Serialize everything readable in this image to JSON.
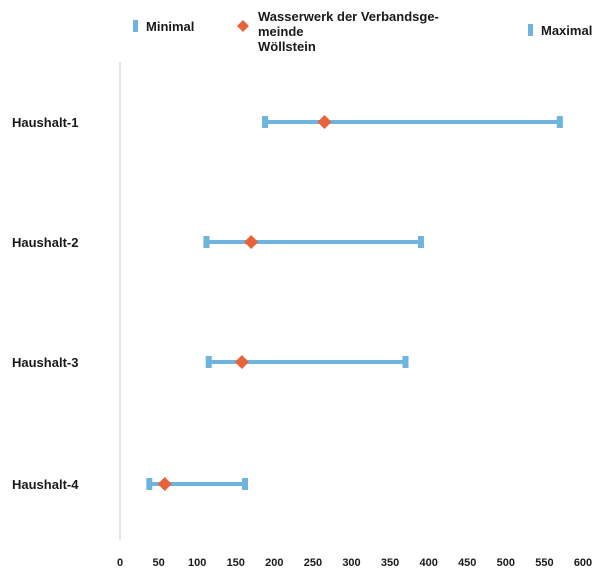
{
  "chart_data": {
    "type": "range",
    "categories": [
      "Haushalt-1",
      "Haushalt-2",
      "Haushalt-3",
      "Haushalt-4"
    ],
    "series": [
      {
        "name": "Minimal",
        "values": [
          188,
          112,
          115,
          38
        ],
        "color": "#6fb3df",
        "marker": "bar-tick"
      },
      {
        "name": "Wasserwerk der Verbandsge-\nmeinde\nWöllstein",
        "values": [
          265,
          170,
          158,
          58
        ],
        "color": "#e8623a",
        "marker": "diamond"
      },
      {
        "name": "Maximal",
        "values": [
          570,
          390,
          370,
          162
        ],
        "color": "#6fb3df",
        "marker": "bar-tick"
      }
    ],
    "range_line_color": "#6fb3df",
    "xlim": [
      0,
      600
    ],
    "xticks": [
      0,
      50,
      100,
      150,
      200,
      250,
      300,
      350,
      400,
      450,
      500,
      550,
      600
    ],
    "legend_position": "top",
    "grid": false
  }
}
